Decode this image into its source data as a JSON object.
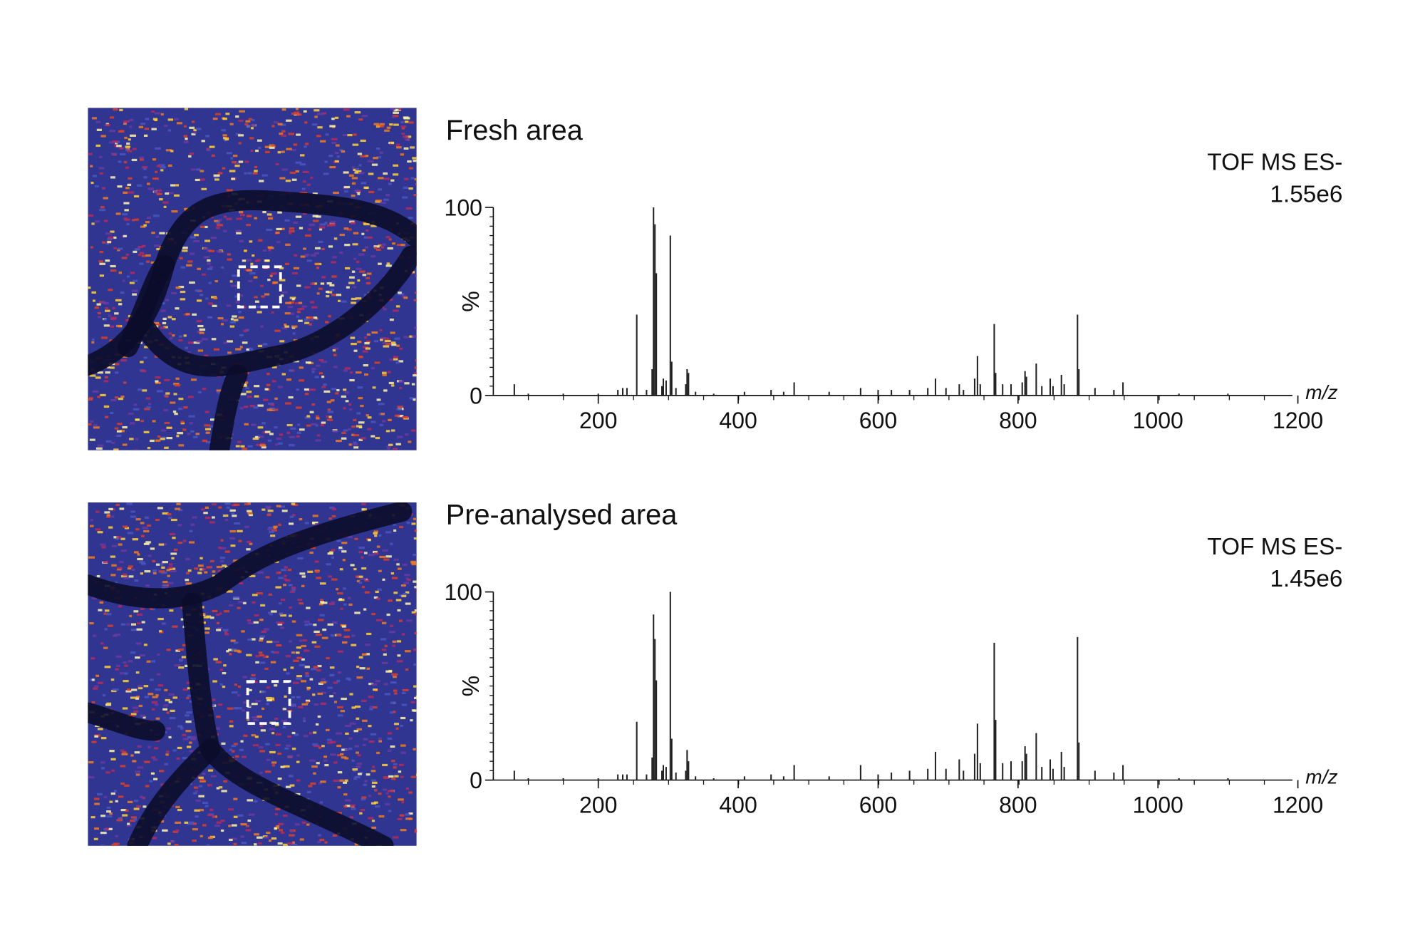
{
  "chart_data": [
    {
      "type": "bar",
      "title": "Fresh area",
      "annotations": [
        "TOF MS ES-",
        "1.55e6"
      ],
      "y_label": "%",
      "x_label": "m/z",
      "color": "#222222",
      "x": [
        80,
        100,
        150,
        200,
        228,
        235,
        241,
        255,
        269,
        277,
        279,
        281,
        283,
        291,
        293,
        297,
        303,
        305,
        311,
        325,
        327,
        329,
        339,
        365,
        409,
        447,
        465,
        480,
        530,
        575,
        600,
        619,
        645,
        671,
        682,
        697,
        716,
        722,
        738,
        742,
        746,
        766,
        768,
        778,
        790,
        806,
        810,
        812,
        826,
        834,
        846,
        850,
        862,
        866,
        885,
        887,
        910,
        937,
        950,
        1030,
        1100
      ],
      "values": [
        6,
        1,
        1,
        1,
        3,
        4,
        4,
        43,
        3,
        14,
        100,
        91,
        65,
        5,
        9,
        8,
        85,
        18,
        4,
        6,
        14,
        12,
        2,
        1,
        2,
        3,
        2,
        7,
        2,
        4,
        3,
        3,
        3,
        4,
        9,
        4,
        6,
        3,
        9,
        21,
        6,
        38,
        12,
        6,
        6,
        7,
        13,
        10,
        17,
        5,
        9,
        5,
        11,
        6,
        43,
        14,
        4,
        3,
        7,
        1,
        1
      ],
      "xlim": [
        50,
        1200
      ],
      "ylim": [
        0,
        100
      ],
      "xticks": [
        200,
        400,
        600,
        800,
        1000,
        1200
      ],
      "yticks": [
        0,
        100
      ]
    },
    {
      "type": "bar",
      "title": "Pre-analysed area",
      "annotations": [
        "TOF MS ES-",
        "1.45e6"
      ],
      "y_label": "%",
      "x_label": "m/z",
      "color": "#222222",
      "x": [
        80,
        100,
        150,
        200,
        228,
        235,
        241,
        255,
        269,
        277,
        279,
        281,
        283,
        291,
        293,
        297,
        303,
        305,
        311,
        325,
        327,
        329,
        339,
        365,
        409,
        447,
        465,
        480,
        530,
        575,
        600,
        619,
        645,
        671,
        682,
        697,
        716,
        722,
        738,
        742,
        746,
        766,
        768,
        778,
        790,
        806,
        810,
        812,
        826,
        834,
        846,
        850,
        862,
        866,
        885,
        887,
        910,
        937,
        950,
        1030,
        1100
      ],
      "values": [
        5,
        1,
        1,
        1,
        3,
        3,
        3,
        31,
        3,
        12,
        88,
        75,
        53,
        5,
        8,
        7,
        100,
        22,
        4,
        5,
        16,
        10,
        2,
        1,
        2,
        3,
        2,
        8,
        2,
        8,
        3,
        4,
        5,
        6,
        15,
        6,
        11,
        5,
        14,
        30,
        9,
        73,
        32,
        9,
        10,
        10,
        18,
        14,
        25,
        7,
        11,
        6,
        15,
        7,
        76,
        20,
        5,
        4,
        8,
        1,
        1
      ],
      "xlim": [
        50,
        1200
      ],
      "ylim": [
        0,
        100
      ],
      "xticks": [
        200,
        400,
        600,
        800,
        1000,
        1200
      ],
      "yticks": [
        0,
        100
      ]
    }
  ]
}
